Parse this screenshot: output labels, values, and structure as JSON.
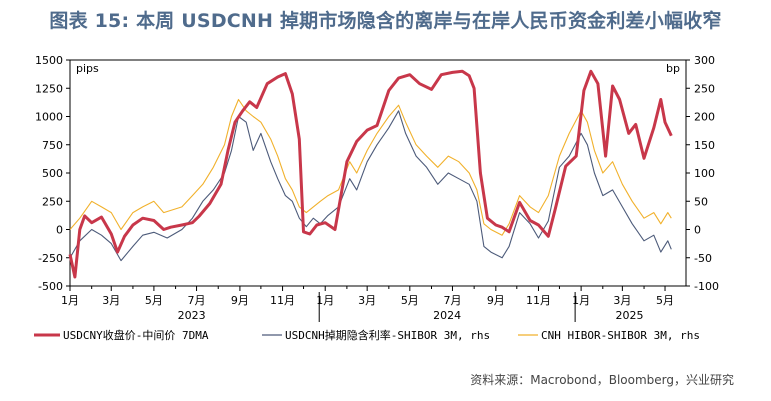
{
  "title": "图表 15: 本周 USDCNH 掉期市场隐含的离岸与在岸人民币资金利差小幅收窄",
  "source": "资料来源：Macrobond，Bloomberg，兴业研究",
  "chart_data": {
    "type": "line",
    "title": "图表 15: 本周 USDCNH 掉期市场隐含的离岸与在岸人民币资金利差小幅收窄",
    "y_left": {
      "unit": "pips",
      "min": -500,
      "max": 1500,
      "ticks": [
        1500,
        1250,
        1000,
        750,
        500,
        250,
        0,
        -250,
        -500
      ]
    },
    "y_right": {
      "unit": "bp",
      "min": -100,
      "max": 300,
      "ticks": [
        300,
        250,
        200,
        150,
        100,
        50,
        0,
        -50,
        -100
      ]
    },
    "x": {
      "range": [
        "2023-01-01",
        "2025-05-31"
      ],
      "month_ticks": [
        "1月",
        "3月",
        "5月",
        "7月",
        "9月",
        "11月",
        "1月",
        "3月",
        "5月",
        "7月",
        "9月",
        "11月",
        "1月",
        "3月",
        "5月"
      ],
      "year_labels": [
        "2023",
        "2024",
        "2025"
      ]
    },
    "grid": false,
    "legend_position": "bottom",
    "series": [
      {
        "name": "USDCNY收盘价-中间价 7DMA",
        "axis": "left",
        "color": "#c8374a",
        "points": [
          [
            "2023-01-01",
            -220
          ],
          [
            "2023-01-08",
            -420
          ],
          [
            "2023-01-15",
            0
          ],
          [
            "2023-01-22",
            120
          ],
          [
            "2023-02-01",
            60
          ],
          [
            "2023-02-15",
            110
          ],
          [
            "2023-03-01",
            -40
          ],
          [
            "2023-03-10",
            -200
          ],
          [
            "2023-03-20",
            -60
          ],
          [
            "2023-04-01",
            40
          ],
          [
            "2023-04-15",
            100
          ],
          [
            "2023-05-01",
            80
          ],
          [
            "2023-05-15",
            0
          ],
          [
            "2023-05-25",
            20
          ],
          [
            "2023-06-10",
            40
          ],
          [
            "2023-06-25",
            60
          ],
          [
            "2023-07-05",
            120
          ],
          [
            "2023-07-20",
            230
          ],
          [
            "2023-08-05",
            400
          ],
          [
            "2023-08-15",
            700
          ],
          [
            "2023-08-25",
            950
          ],
          [
            "2023-09-05",
            1050
          ],
          [
            "2023-09-15",
            1130
          ],
          [
            "2023-09-25",
            1080
          ],
          [
            "2023-10-10",
            1290
          ],
          [
            "2023-10-25",
            1350
          ],
          [
            "2023-11-05",
            1380
          ],
          [
            "2023-11-15",
            1200
          ],
          [
            "2023-11-25",
            800
          ],
          [
            "2023-12-01",
            -20
          ],
          [
            "2023-12-10",
            -40
          ],
          [
            "2023-12-20",
            40
          ],
          [
            "2024-01-01",
            60
          ],
          [
            "2024-01-15",
            0
          ],
          [
            "2024-02-01",
            600
          ],
          [
            "2024-02-15",
            780
          ],
          [
            "2024-03-01",
            880
          ],
          [
            "2024-03-15",
            920
          ],
          [
            "2024-04-01",
            1230
          ],
          [
            "2024-04-15",
            1340
          ],
          [
            "2024-05-01",
            1370
          ],
          [
            "2024-05-15",
            1290
          ],
          [
            "2024-06-01",
            1240
          ],
          [
            "2024-06-15",
            1370
          ],
          [
            "2024-07-01",
            1390
          ],
          [
            "2024-07-15",
            1400
          ],
          [
            "2024-07-25",
            1360
          ],
          [
            "2024-08-01",
            1250
          ],
          [
            "2024-08-10",
            500
          ],
          [
            "2024-08-20",
            100
          ],
          [
            "2024-09-01",
            40
          ],
          [
            "2024-09-10",
            20
          ],
          [
            "2024-09-20",
            -20
          ],
          [
            "2024-10-05",
            240
          ],
          [
            "2024-10-20",
            80
          ],
          [
            "2024-11-01",
            40
          ],
          [
            "2024-11-15",
            -60
          ],
          [
            "2024-11-25",
            180
          ],
          [
            "2024-12-10",
            560
          ],
          [
            "2024-12-25",
            650
          ],
          [
            "2025-01-05",
            1230
          ],
          [
            "2025-01-15",
            1400
          ],
          [
            "2025-01-25",
            1290
          ],
          [
            "2025-02-05",
            650
          ],
          [
            "2025-02-15",
            1270
          ],
          [
            "2025-02-25",
            1150
          ],
          [
            "2025-03-10",
            850
          ],
          [
            "2025-03-20",
            930
          ],
          [
            "2025-04-01",
            630
          ],
          [
            "2025-04-15",
            900
          ],
          [
            "2025-04-25",
            1150
          ],
          [
            "2025-05-01",
            950
          ],
          [
            "2025-05-10",
            830
          ]
        ]
      },
      {
        "name": "USDCNH掉期隐含利率-SHIBOR 3M, rhs",
        "axis": "right",
        "color": "#4d5b7a",
        "points": [
          [
            "2023-01-01",
            -50
          ],
          [
            "2023-01-15",
            -20
          ],
          [
            "2023-02-01",
            0
          ],
          [
            "2023-02-15",
            -10
          ],
          [
            "2023-03-01",
            -25
          ],
          [
            "2023-03-15",
            -55
          ],
          [
            "2023-04-01",
            -30
          ],
          [
            "2023-04-15",
            -10
          ],
          [
            "2023-05-01",
            -5
          ],
          [
            "2023-05-20",
            -15
          ],
          [
            "2023-06-10",
            0
          ],
          [
            "2023-06-25",
            20
          ],
          [
            "2023-07-10",
            50
          ],
          [
            "2023-07-25",
            70
          ],
          [
            "2023-08-10",
            100
          ],
          [
            "2023-08-20",
            140
          ],
          [
            "2023-08-30",
            200
          ],
          [
            "2023-09-10",
            190
          ],
          [
            "2023-09-20",
            140
          ],
          [
            "2023-10-01",
            170
          ],
          [
            "2023-10-15",
            120
          ],
          [
            "2023-10-25",
            90
          ],
          [
            "2023-11-05",
            60
          ],
          [
            "2023-11-15",
            50
          ],
          [
            "2023-11-25",
            20
          ],
          [
            "2023-12-05",
            5
          ],
          [
            "2023-12-15",
            20
          ],
          [
            "2023-12-25",
            10
          ],
          [
            "2024-01-05",
            25
          ],
          [
            "2024-01-20",
            40
          ],
          [
            "2024-02-05",
            90
          ],
          [
            "2024-02-15",
            70
          ],
          [
            "2024-03-01",
            120
          ],
          [
            "2024-03-15",
            150
          ],
          [
            "2024-04-01",
            180
          ],
          [
            "2024-04-15",
            210
          ],
          [
            "2024-04-25",
            170
          ],
          [
            "2024-05-10",
            130
          ],
          [
            "2024-05-25",
            110
          ],
          [
            "2024-06-10",
            80
          ],
          [
            "2024-06-25",
            100
          ],
          [
            "2024-07-10",
            90
          ],
          [
            "2024-07-25",
            80
          ],
          [
            "2024-08-05",
            50
          ],
          [
            "2024-08-15",
            -30
          ],
          [
            "2024-08-25",
            -40
          ],
          [
            "2024-09-10",
            -50
          ],
          [
            "2024-09-20",
            -30
          ],
          [
            "2024-10-05",
            30
          ],
          [
            "2024-10-20",
            10
          ],
          [
            "2024-11-01",
            -15
          ],
          [
            "2024-11-15",
            15
          ],
          [
            "2024-12-01",
            110
          ],
          [
            "2024-12-15",
            130
          ],
          [
            "2025-01-01",
            170
          ],
          [
            "2025-01-10",
            150
          ],
          [
            "2025-01-20",
            100
          ],
          [
            "2025-02-01",
            60
          ],
          [
            "2025-02-15",
            70
          ],
          [
            "2025-03-01",
            40
          ],
          [
            "2025-03-15",
            10
          ],
          [
            "2025-04-01",
            -20
          ],
          [
            "2025-04-15",
            -10
          ],
          [
            "2025-04-25",
            -40
          ],
          [
            "2025-05-05",
            -20
          ],
          [
            "2025-05-10",
            -35
          ]
        ]
      },
      {
        "name": "CNH HIBOR-SHIBOR 3M, rhs",
        "axis": "right",
        "color": "#f1b12c",
        "points": [
          [
            "2023-01-01",
            0
          ],
          [
            "2023-01-15",
            20
          ],
          [
            "2023-02-01",
            50
          ],
          [
            "2023-02-15",
            40
          ],
          [
            "2023-03-01",
            30
          ],
          [
            "2023-03-15",
            0
          ],
          [
            "2023-04-01",
            30
          ],
          [
            "2023-04-15",
            40
          ],
          [
            "2023-05-01",
            50
          ],
          [
            "2023-05-15",
            30
          ],
          [
            "2023-06-10",
            40
          ],
          [
            "2023-06-25",
            60
          ],
          [
            "2023-07-10",
            80
          ],
          [
            "2023-07-25",
            110
          ],
          [
            "2023-08-10",
            150
          ],
          [
            "2023-08-20",
            200
          ],
          [
            "2023-08-30",
            230
          ],
          [
            "2023-09-10",
            210
          ],
          [
            "2023-09-20",
            200
          ],
          [
            "2023-10-01",
            190
          ],
          [
            "2023-10-15",
            160
          ],
          [
            "2023-10-25",
            130
          ],
          [
            "2023-11-05",
            90
          ],
          [
            "2023-11-15",
            70
          ],
          [
            "2023-11-25",
            40
          ],
          [
            "2023-12-05",
            30
          ],
          [
            "2023-12-15",
            40
          ],
          [
            "2023-12-25",
            50
          ],
          [
            "2024-01-05",
            60
          ],
          [
            "2024-01-20",
            70
          ],
          [
            "2024-02-05",
            120
          ],
          [
            "2024-02-15",
            100
          ],
          [
            "2024-03-01",
            140
          ],
          [
            "2024-03-15",
            170
          ],
          [
            "2024-04-01",
            200
          ],
          [
            "2024-04-15",
            220
          ],
          [
            "2024-04-25",
            190
          ],
          [
            "2024-05-10",
            150
          ],
          [
            "2024-05-25",
            130
          ],
          [
            "2024-06-10",
            110
          ],
          [
            "2024-06-25",
            130
          ],
          [
            "2024-07-10",
            120
          ],
          [
            "2024-07-25",
            100
          ],
          [
            "2024-08-05",
            70
          ],
          [
            "2024-08-15",
            10
          ],
          [
            "2024-08-25",
            0
          ],
          [
            "2024-09-10",
            -10
          ],
          [
            "2024-09-20",
            10
          ],
          [
            "2024-10-05",
            60
          ],
          [
            "2024-10-20",
            40
          ],
          [
            "2024-11-01",
            30
          ],
          [
            "2024-11-15",
            60
          ],
          [
            "2024-12-01",
            130
          ],
          [
            "2024-12-15",
            170
          ],
          [
            "2025-01-01",
            210
          ],
          [
            "2025-01-10",
            190
          ],
          [
            "2025-01-20",
            140
          ],
          [
            "2025-02-01",
            100
          ],
          [
            "2025-02-15",
            120
          ],
          [
            "2025-03-01",
            80
          ],
          [
            "2025-03-15",
            50
          ],
          [
            "2025-04-01",
            20
          ],
          [
            "2025-04-15",
            30
          ],
          [
            "2025-04-25",
            10
          ],
          [
            "2025-05-05",
            30
          ],
          [
            "2025-05-10",
            20
          ]
        ]
      }
    ]
  }
}
